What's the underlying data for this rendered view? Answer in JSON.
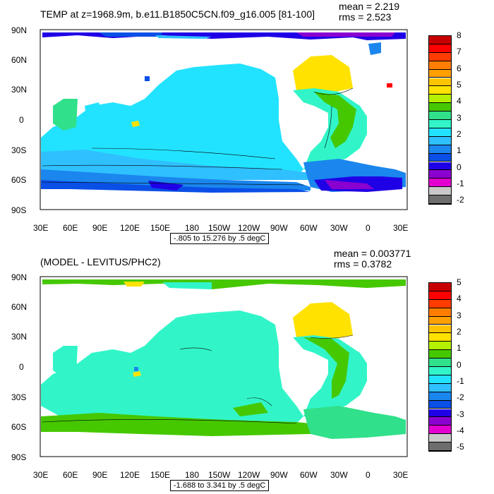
{
  "palette": [
    "#ffffff",
    "#6e6e6e",
    "#c8c8c8",
    "#e200d0",
    "#8a00d0",
    "#1f00e6",
    "#0a4fe6",
    "#1a86ee",
    "#2fc0ff",
    "#22e3ff",
    "#31f5c8",
    "#30e08a",
    "#45c800",
    "#b4f000",
    "#ffe200",
    "#ffc400",
    "#ffa000",
    "#ff7d00",
    "#ff3c00",
    "#ff0000",
    "#c80000"
  ],
  "x_ticks": [
    "30E",
    "60E",
    "90E",
    "120E",
    "150E",
    "180",
    "150W",
    "120W",
    "90W",
    "60W",
    "30W",
    "0",
    "30E"
  ],
  "y_ticks": [
    "90N",
    "60N",
    "30N",
    "0",
    "30S",
    "60S",
    "90S"
  ],
  "panels": [
    {
      "title": "TEMP at z=1968.9m, b.e11.B1850C5CN.f09_g16.005 [81-100]",
      "mean": "mean = 2.219",
      "rms": "rms = 2.523",
      "contour_note": "-.805 to 15.276 by .5 degC",
      "colorbar_labels": [
        "8",
        "7",
        "6",
        "5",
        "4",
        "3",
        "2",
        "1",
        "0",
        "-1",
        "-2"
      ],
      "colorbar_colors": [
        "#c80000",
        "#ff0000",
        "#ff3c00",
        "#ff7d00",
        "#ffa000",
        "#ffc400",
        "#ffe200",
        "#b4f000",
        "#45c800",
        "#30e08a",
        "#31f5c8",
        "#22e3ff",
        "#2fc0ff",
        "#1a86ee",
        "#0a4fe6",
        "#1f00e6",
        "#8a00d0",
        "#e200d0",
        "#c8c8c8",
        "#6e6e6e"
      ]
    },
    {
      "title": "(MODEL - LEVITUS/PHC2)",
      "mean": "mean = 0.003771",
      "rms": "rms = 0.3782",
      "contour_note": "-1.688 to 3.341 by .5 degC",
      "colorbar_labels": [
        "5",
        "4",
        "3",
        "2",
        "1",
        "0",
        "-1",
        "-2",
        "-3",
        "-4",
        "-5"
      ],
      "colorbar_colors": [
        "#c80000",
        "#ff0000",
        "#ff3c00",
        "#ff7d00",
        "#ffa000",
        "#ffc400",
        "#ffe200",
        "#b4f000",
        "#45c800",
        "#30e08a",
        "#31f5c8",
        "#22e3ff",
        "#2fc0ff",
        "#1a86ee",
        "#0a4fe6",
        "#1f00e6",
        "#8a00d0",
        "#e200d0",
        "#c8c8c8",
        "#6e6e6e"
      ]
    }
  ]
}
